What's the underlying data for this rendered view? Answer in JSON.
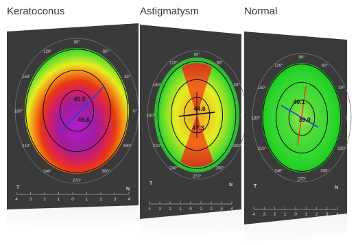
{
  "panels": [
    {
      "title": "Keratoconus",
      "readings": [
        "45.5",
        "49.6"
      ],
      "angles": [
        "90°",
        "60°",
        "30°",
        "0°",
        "330°",
        "300°",
        "270°",
        "240°",
        "210°",
        "180°",
        "150°",
        "120°"
      ],
      "side_labels": [
        "T",
        "N"
      ],
      "scale": [
        "4",
        "3",
        "2",
        "1",
        "0",
        "1",
        "2",
        "3",
        "4"
      ]
    },
    {
      "title": "Astigmatysm",
      "readings": [
        "44.6",
        "47.3"
      ],
      "angles": [
        "90°",
        "60°",
        "30°",
        "0°",
        "330°",
        "300°",
        "270°",
        "240°",
        "210°",
        "180°",
        "150°",
        "120°"
      ],
      "side_labels": [
        "T",
        "N"
      ],
      "scale": [
        "4",
        "3",
        "2",
        "1",
        "0",
        "1",
        "2",
        "3",
        "4"
      ]
    },
    {
      "title": "Normal",
      "readings": [
        "40.1",
        "39.0"
      ],
      "angles": [
        "90°",
        "60°",
        "30°",
        "0°",
        "330°",
        "300°",
        "270°",
        "240°",
        "210°",
        "180°",
        "150°",
        "120°"
      ],
      "side_labels": [
        "T",
        "N"
      ],
      "scale": [
        "4",
        "3",
        "2",
        "1",
        "0",
        "1",
        "2",
        "3",
        "4"
      ]
    }
  ],
  "colors": {
    "panel_bg": "#3a3a3a",
    "map_green": "#2fdc2f",
    "map_yellow": "#e8ee24",
    "map_red": "#e0241a",
    "map_magenta": "#a020b8",
    "axis_blue": "#2244dd",
    "axis_red": "#ee3322"
  }
}
